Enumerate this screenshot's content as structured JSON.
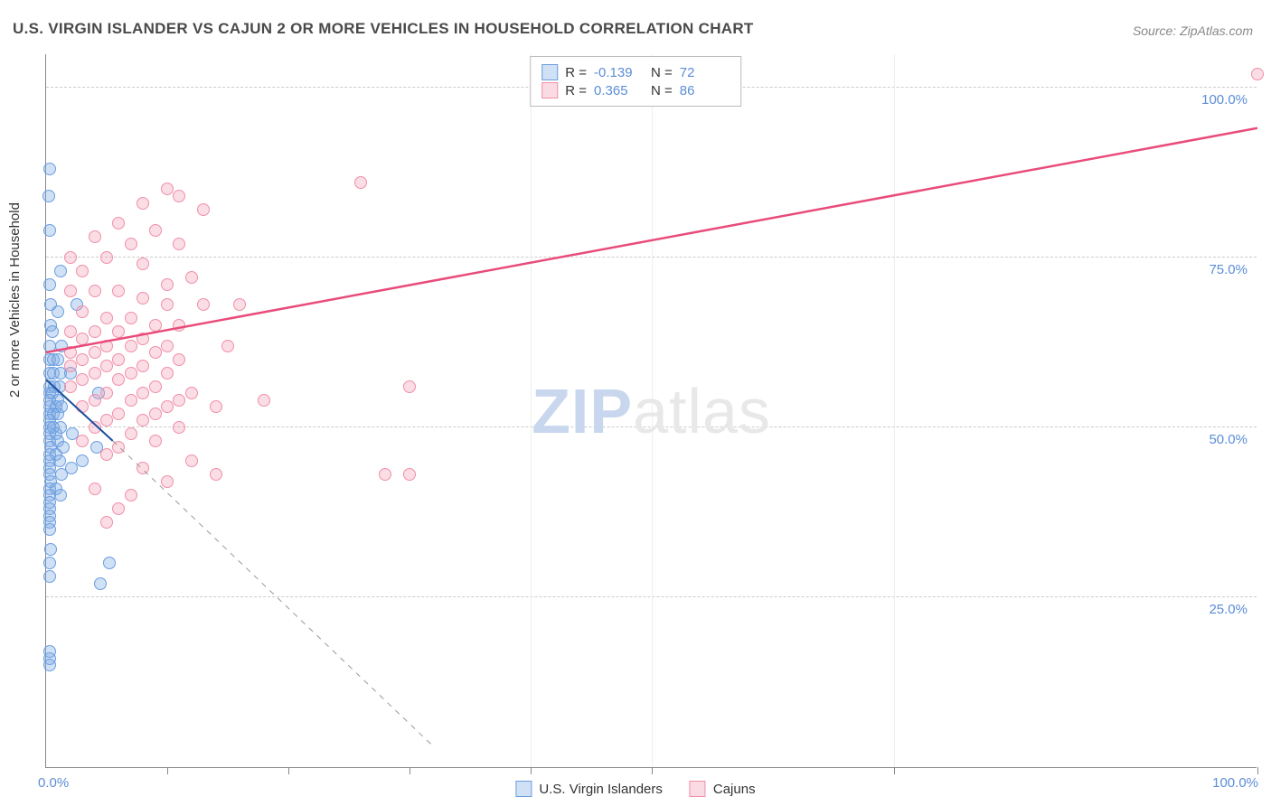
{
  "title": "U.S. VIRGIN ISLANDER VS CAJUN 2 OR MORE VEHICLES IN HOUSEHOLD CORRELATION CHART",
  "source": "Source: ZipAtlas.com",
  "ylabel": "2 or more Vehicles in Household",
  "watermark": {
    "part1": "ZIP",
    "part2": "atlas"
  },
  "axes": {
    "xlim": [
      0,
      100
    ],
    "ylim": [
      0,
      105
    ],
    "x_tick_label_0": "0.0%",
    "x_tick_label_100": "100.0%",
    "y_tick_labels": [
      {
        "v": 25,
        "label": "25.0%"
      },
      {
        "v": 50,
        "label": "50.0%"
      },
      {
        "v": 75,
        "label": "75.0%"
      },
      {
        "v": 100,
        "label": "100.0%"
      }
    ],
    "x_ticks": [
      0,
      10,
      20,
      30,
      40,
      50,
      70,
      100
    ],
    "label_color": "#5b8dd6",
    "grid_color": "#cccccc"
  },
  "legend_top": {
    "series": [
      {
        "color_fill": "#d0e0f5",
        "color_border": "#6a9de0",
        "r_label": "R =",
        "r_val": "-0.139",
        "n_label": "N =",
        "n_val": "72"
      },
      {
        "color_fill": "#fbdbe3",
        "color_border": "#f08fa8",
        "r_label": "R =",
        "r_val": "0.365",
        "n_label": "N =",
        "n_val": "86"
      }
    ]
  },
  "legend_bottom": {
    "items": [
      {
        "color_fill": "#d0e0f5",
        "color_border": "#6a9de0",
        "label": "U.S. Virgin Islanders"
      },
      {
        "color_fill": "#fbdbe3",
        "color_border": "#f08fa8",
        "label": "Cajuns"
      }
    ]
  },
  "series": [
    {
      "name": "usvi",
      "color_fill": "rgba(124,169,226,0.35)",
      "color_border": "#6a9de0",
      "marker_size": 14,
      "trend": {
        "x1": 0,
        "y1": 57,
        "x2": 5.5,
        "y2": 48,
        "ext_x2": 32,
        "ext_y2": 3,
        "color": "#1b4f9c",
        "width": 2,
        "dash_color": "#999"
      },
      "points": [
        [
          0.3,
          88
        ],
        [
          0.2,
          84
        ],
        [
          0.3,
          79
        ],
        [
          1.2,
          73
        ],
        [
          0.3,
          71
        ],
        [
          0.4,
          68
        ],
        [
          1.0,
          67
        ],
        [
          2.5,
          68
        ],
        [
          0.4,
          65
        ],
        [
          0.5,
          64
        ],
        [
          0.3,
          62
        ],
        [
          1.3,
          62
        ],
        [
          0.3,
          60
        ],
        [
          0.6,
          60
        ],
        [
          1.0,
          60
        ],
        [
          0.3,
          58
        ],
        [
          0.6,
          58
        ],
        [
          1.2,
          58
        ],
        [
          2.0,
          58
        ],
        [
          0.3,
          56
        ],
        [
          0.7,
          56
        ],
        [
          1.1,
          56
        ],
        [
          0.3,
          55
        ],
        [
          0.5,
          55
        ],
        [
          4.3,
          55
        ],
        [
          0.3,
          54
        ],
        [
          1.0,
          54
        ],
        [
          0.3,
          53
        ],
        [
          0.8,
          53
        ],
        [
          1.3,
          53
        ],
        [
          0.3,
          52
        ],
        [
          0.6,
          52
        ],
        [
          1.0,
          52
        ],
        [
          0.3,
          51
        ],
        [
          0.3,
          50
        ],
        [
          0.6,
          50
        ],
        [
          1.2,
          50
        ],
        [
          0.3,
          49
        ],
        [
          0.8,
          49
        ],
        [
          2.2,
          49
        ],
        [
          0.3,
          48
        ],
        [
          1.0,
          48
        ],
        [
          0.4,
          47
        ],
        [
          1.4,
          47
        ],
        [
          4.2,
          47
        ],
        [
          0.3,
          46
        ],
        [
          0.8,
          46
        ],
        [
          0.3,
          45
        ],
        [
          1.1,
          45
        ],
        [
          3.0,
          45
        ],
        [
          0.3,
          44
        ],
        [
          2.1,
          44
        ],
        [
          0.3,
          43
        ],
        [
          1.3,
          43
        ],
        [
          0.4,
          42
        ],
        [
          0.3,
          41
        ],
        [
          0.8,
          41
        ],
        [
          0.3,
          40
        ],
        [
          1.2,
          40
        ],
        [
          0.3,
          39
        ],
        [
          0.3,
          38
        ],
        [
          0.3,
          37
        ],
        [
          0.3,
          36
        ],
        [
          0.3,
          35
        ],
        [
          5.2,
          30
        ],
        [
          0.4,
          32
        ],
        [
          0.3,
          30
        ],
        [
          4.5,
          27
        ],
        [
          0.3,
          28
        ],
        [
          0.3,
          17
        ],
        [
          0.3,
          16
        ],
        [
          0.3,
          15
        ]
      ]
    },
    {
      "name": "cajun",
      "color_fill": "rgba(244,158,181,0.35)",
      "color_border": "#f08fa8",
      "marker_size": 14,
      "trend": {
        "x1": 0,
        "y1": 61,
        "x2": 100,
        "y2": 94,
        "color": "#e94b7a",
        "width": 2.5
      },
      "points": [
        [
          100,
          102
        ],
        [
          26,
          86
        ],
        [
          10,
          85
        ],
        [
          11,
          84
        ],
        [
          8,
          83
        ],
        [
          13,
          82
        ],
        [
          6,
          80
        ],
        [
          9,
          79
        ],
        [
          4,
          78
        ],
        [
          7,
          77
        ],
        [
          11,
          77
        ],
        [
          2,
          75
        ],
        [
          5,
          75
        ],
        [
          8,
          74
        ],
        [
          3,
          73
        ],
        [
          12,
          72
        ],
        [
          10,
          71
        ],
        [
          2,
          70
        ],
        [
          4,
          70
        ],
        [
          6,
          70
        ],
        [
          8,
          69
        ],
        [
          13,
          68
        ],
        [
          16,
          68
        ],
        [
          10,
          68
        ],
        [
          3,
          67
        ],
        [
          5,
          66
        ],
        [
          7,
          66
        ],
        [
          9,
          65
        ],
        [
          11,
          65
        ],
        [
          2,
          64
        ],
        [
          4,
          64
        ],
        [
          6,
          64
        ],
        [
          8,
          63
        ],
        [
          3,
          63
        ],
        [
          5,
          62
        ],
        [
          10,
          62
        ],
        [
          15,
          62
        ],
        [
          7,
          62
        ],
        [
          2,
          61
        ],
        [
          4,
          61
        ],
        [
          9,
          61
        ],
        [
          3,
          60
        ],
        [
          6,
          60
        ],
        [
          11,
          60
        ],
        [
          2,
          59
        ],
        [
          5,
          59
        ],
        [
          8,
          59
        ],
        [
          4,
          58
        ],
        [
          7,
          58
        ],
        [
          10,
          58
        ],
        [
          3,
          57
        ],
        [
          6,
          57
        ],
        [
          2,
          56
        ],
        [
          9,
          56
        ],
        [
          30,
          56
        ],
        [
          5,
          55
        ],
        [
          8,
          55
        ],
        [
          12,
          55
        ],
        [
          4,
          54
        ],
        [
          7,
          54
        ],
        [
          11,
          54
        ],
        [
          18,
          54
        ],
        [
          3,
          53
        ],
        [
          10,
          53
        ],
        [
          14,
          53
        ],
        [
          6,
          52
        ],
        [
          9,
          52
        ],
        [
          5,
          51
        ],
        [
          8,
          51
        ],
        [
          4,
          50
        ],
        [
          11,
          50
        ],
        [
          7,
          49
        ],
        [
          3,
          48
        ],
        [
          9,
          48
        ],
        [
          6,
          47
        ],
        [
          5,
          46
        ],
        [
          12,
          45
        ],
        [
          8,
          44
        ],
        [
          28,
          43
        ],
        [
          30,
          43
        ],
        [
          14,
          43
        ],
        [
          10,
          42
        ],
        [
          4,
          41
        ],
        [
          7,
          40
        ],
        [
          6,
          38
        ],
        [
          5,
          36
        ]
      ]
    }
  ]
}
